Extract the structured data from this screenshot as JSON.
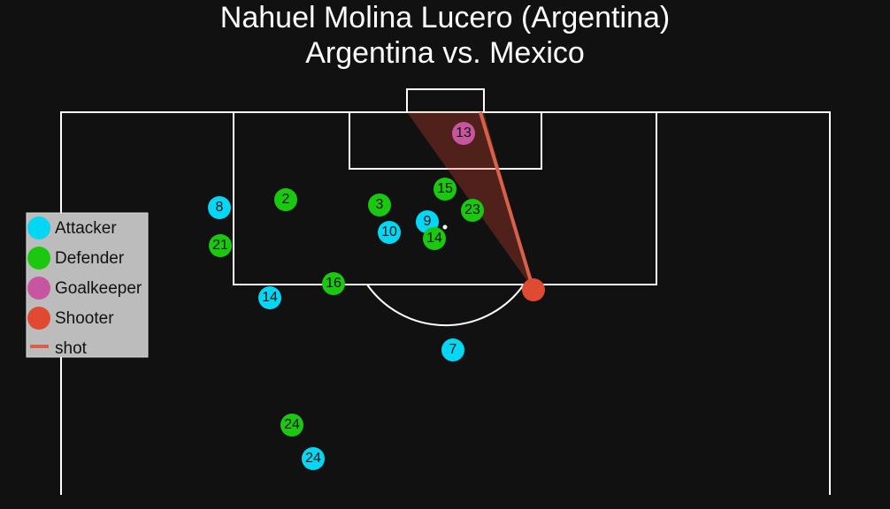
{
  "title": {
    "line1": "Nahuel Molina Lucero (Argentina)",
    "line2": "Argentina vs. Mexico"
  },
  "legend": [
    {
      "label": "Attacker",
      "color": "#00d7f5",
      "players": [
        "8",
        "10",
        "9",
        "14",
        "7",
        "24"
      ]
    },
    {
      "label": "Defender",
      "color": "#19c80f",
      "players": [
        "2",
        "3",
        "15",
        "23",
        "14",
        "21",
        "16",
        "24"
      ]
    },
    {
      "label": "Goalkeeper",
      "color": "#c7559f",
      "players": [
        "13"
      ]
    },
    {
      "label": "Shooter",
      "color": "#e04a33"
    },
    {
      "label": "shot",
      "color": "#d9614a"
    }
  ]
}
